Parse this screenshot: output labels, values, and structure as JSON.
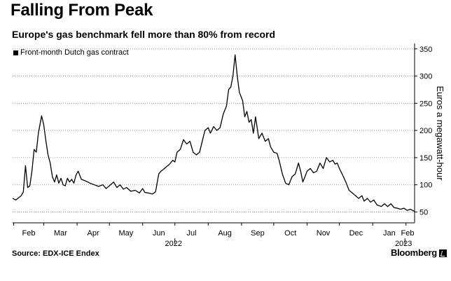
{
  "header": {
    "title": "Falling From Peak",
    "subtitle": "Europe's gas benchmark fell more than 80% from record"
  },
  "footer": {
    "source": "Source: EDX-ICE Endex",
    "brand": "Bloomberg"
  },
  "chart_data": {
    "type": "line",
    "legend": "Front-month Dutch gas contract",
    "legend_position": "top-left",
    "ylabel": "Euros a megawatt-hour",
    "y_axis_side": "right",
    "ylim": [
      30,
      360
    ],
    "yticks": [
      50,
      100,
      150,
      200,
      250,
      300,
      350
    ],
    "grid": "horizontal dotted",
    "xlim": [
      "2022-01-31",
      "2023-02-09"
    ],
    "xticks": [
      {
        "label": "Feb",
        "date": "2022-02-01"
      },
      {
        "label": "Mar",
        "date": "2022-03-01"
      },
      {
        "label": "Apr",
        "date": "2022-04-01"
      },
      {
        "label": "May",
        "date": "2022-05-01"
      },
      {
        "label": "Jun",
        "date": "2022-06-01"
      },
      {
        "label": "Jul",
        "date": "2022-07-01"
      },
      {
        "label": "Aug",
        "date": "2022-08-01"
      },
      {
        "label": "Sep",
        "date": "2022-09-01"
      },
      {
        "label": "Oct",
        "date": "2022-10-01"
      },
      {
        "label": "Nov",
        "date": "2022-11-01"
      },
      {
        "label": "Dec",
        "date": "2022-12-01"
      },
      {
        "label": "Jan",
        "date": "2023-01-01"
      },
      {
        "label": "Feb",
        "date": "2023-02-01"
      }
    ],
    "year_labels": [
      {
        "label": "2022",
        "date": "2022-07-01"
      },
      {
        "label": "2023",
        "date": "2023-01-31"
      }
    ],
    "series": [
      {
        "name": "Front-month Dutch gas contract",
        "color": "#000000",
        "points": [
          [
            "2022-01-31",
            75
          ],
          [
            "2022-02-03",
            72
          ],
          [
            "2022-02-08",
            80
          ],
          [
            "2022-02-10",
            87
          ],
          [
            "2022-02-12",
            135
          ],
          [
            "2022-02-14",
            95
          ],
          [
            "2022-02-16",
            98
          ],
          [
            "2022-02-18",
            125
          ],
          [
            "2022-02-20",
            165
          ],
          [
            "2022-02-22",
            160
          ],
          [
            "2022-02-24",
            195
          ],
          [
            "2022-02-27",
            227
          ],
          [
            "2022-03-01",
            210
          ],
          [
            "2022-03-03",
            180
          ],
          [
            "2022-03-05",
            155
          ],
          [
            "2022-03-07",
            140
          ],
          [
            "2022-03-09",
            115
          ],
          [
            "2022-03-11",
            105
          ],
          [
            "2022-03-13",
            118
          ],
          [
            "2022-03-15",
            103
          ],
          [
            "2022-03-17",
            112
          ],
          [
            "2022-03-19",
            100
          ],
          [
            "2022-03-21",
            98
          ],
          [
            "2022-03-23",
            112
          ],
          [
            "2022-03-25",
            105
          ],
          [
            "2022-03-27",
            110
          ],
          [
            "2022-03-29",
            103
          ],
          [
            "2022-03-31",
            118
          ],
          [
            "2022-04-02",
            125
          ],
          [
            "2022-04-05",
            110
          ],
          [
            "2022-04-09",
            107
          ],
          [
            "2022-04-13",
            103
          ],
          [
            "2022-04-17",
            100
          ],
          [
            "2022-04-21",
            97
          ],
          [
            "2022-04-25",
            100
          ],
          [
            "2022-04-28",
            93
          ],
          [
            "2022-05-02",
            100
          ],
          [
            "2022-05-05",
            105
          ],
          [
            "2022-05-08",
            95
          ],
          [
            "2022-05-11",
            100
          ],
          [
            "2022-05-14",
            92
          ],
          [
            "2022-05-17",
            95
          ],
          [
            "2022-05-21",
            88
          ],
          [
            "2022-05-25",
            90
          ],
          [
            "2022-05-29",
            85
          ],
          [
            "2022-06-01",
            93
          ],
          [
            "2022-06-03",
            86
          ],
          [
            "2022-06-06",
            85
          ],
          [
            "2022-06-10",
            83
          ],
          [
            "2022-06-13",
            87
          ],
          [
            "2022-06-16",
            120
          ],
          [
            "2022-06-18",
            125
          ],
          [
            "2022-06-20",
            128
          ],
          [
            "2022-06-23",
            133
          ],
          [
            "2022-06-26",
            138
          ],
          [
            "2022-06-29",
            145
          ],
          [
            "2022-07-01",
            142
          ],
          [
            "2022-07-03",
            160
          ],
          [
            "2022-07-06",
            165
          ],
          [
            "2022-07-09",
            183
          ],
          [
            "2022-07-12",
            175
          ],
          [
            "2022-07-15",
            180
          ],
          [
            "2022-07-18",
            160
          ],
          [
            "2022-07-21",
            155
          ],
          [
            "2022-07-24",
            160
          ],
          [
            "2022-07-27",
            185
          ],
          [
            "2022-07-29",
            200
          ],
          [
            "2022-08-01",
            205
          ],
          [
            "2022-08-03",
            195
          ],
          [
            "2022-08-06",
            207
          ],
          [
            "2022-08-09",
            200
          ],
          [
            "2022-08-12",
            205
          ],
          [
            "2022-08-15",
            230
          ],
          [
            "2022-08-18",
            245
          ],
          [
            "2022-08-20",
            275
          ],
          [
            "2022-08-22",
            280
          ],
          [
            "2022-08-24",
            300
          ],
          [
            "2022-08-26",
            339
          ],
          [
            "2022-08-28",
            300
          ],
          [
            "2022-08-30",
            270
          ],
          [
            "2022-09-02",
            255
          ],
          [
            "2022-09-04",
            225
          ],
          [
            "2022-09-06",
            235
          ],
          [
            "2022-09-08",
            215
          ],
          [
            "2022-09-10",
            220
          ],
          [
            "2022-09-12",
            195
          ],
          [
            "2022-09-14",
            225
          ],
          [
            "2022-09-17",
            185
          ],
          [
            "2022-09-20",
            195
          ],
          [
            "2022-09-23",
            180
          ],
          [
            "2022-09-26",
            185
          ],
          [
            "2022-09-28",
            170
          ],
          [
            "2022-10-01",
            160
          ],
          [
            "2022-10-04",
            158
          ],
          [
            "2022-10-06",
            145
          ],
          [
            "2022-10-09",
            120
          ],
          [
            "2022-10-12",
            103
          ],
          [
            "2022-10-15",
            100
          ],
          [
            "2022-10-18",
            115
          ],
          [
            "2022-10-21",
            120
          ],
          [
            "2022-10-24",
            140
          ],
          [
            "2022-10-26",
            125
          ],
          [
            "2022-10-28",
            105
          ],
          [
            "2022-10-30",
            115
          ],
          [
            "2022-11-01",
            125
          ],
          [
            "2022-11-04",
            130
          ],
          [
            "2022-11-07",
            122
          ],
          [
            "2022-11-10",
            125
          ],
          [
            "2022-11-13",
            140
          ],
          [
            "2022-11-16",
            130
          ],
          [
            "2022-11-19",
            150
          ],
          [
            "2022-11-22",
            142
          ],
          [
            "2022-11-25",
            145
          ],
          [
            "2022-11-27",
            138
          ],
          [
            "2022-11-29",
            140
          ],
          [
            "2022-12-01",
            130
          ],
          [
            "2022-12-04",
            118
          ],
          [
            "2022-12-07",
            105
          ],
          [
            "2022-12-10",
            90
          ],
          [
            "2022-12-13",
            85
          ],
          [
            "2022-12-16",
            80
          ],
          [
            "2022-12-19",
            75
          ],
          [
            "2022-12-22",
            80
          ],
          [
            "2022-12-24",
            70
          ],
          [
            "2022-12-27",
            75
          ],
          [
            "2022-12-30",
            68
          ],
          [
            "2023-01-02",
            72
          ],
          [
            "2023-01-05",
            63
          ],
          [
            "2023-01-09",
            60
          ],
          [
            "2023-01-12",
            65
          ],
          [
            "2023-01-15",
            60
          ],
          [
            "2023-01-18",
            65
          ],
          [
            "2023-01-21",
            58
          ],
          [
            "2023-01-24",
            57
          ],
          [
            "2023-01-27",
            55
          ],
          [
            "2023-01-30",
            57
          ],
          [
            "2023-02-02",
            53
          ],
          [
            "2023-02-05",
            55
          ],
          [
            "2023-02-09",
            51
          ]
        ]
      }
    ]
  }
}
